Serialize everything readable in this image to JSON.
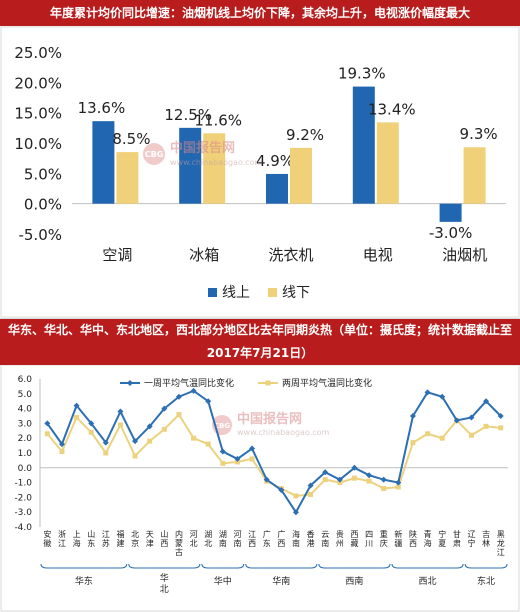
{
  "titles": {
    "top": "年度累计均价同比增速：油烟机线上均价下降，其余均上升，电视涨价幅度最大",
    "bottom_line1": "华东、华北、华中、东北地区，西北部分地区比去年同期炎热（单位：摄氏度；统计数据截止至",
    "bottom_line2": "2017年7月21日）"
  },
  "watermark": {
    "brand": "中国报告网",
    "url": "www.chinabaogao.com",
    "logo": "CBG"
  },
  "colors": {
    "title_bg": "#b81c1c",
    "online": "#2166b0",
    "offline": "#f0d17a",
    "weekly": "#2c6fb3",
    "biweekly": "#ecd27f"
  },
  "chart_data": [
    {
      "type": "bar",
      "categories": [
        "空调",
        "冰箱",
        "洗衣机",
        "电视",
        "油烟机"
      ],
      "series": [
        {
          "name": "线上",
          "values": [
            13.6,
            12.5,
            4.9,
            19.3,
            -3.0
          ],
          "labels": [
            "13.6%",
            "12.5%",
            "4.9%",
            "19.3%",
            "-3.0%"
          ]
        },
        {
          "name": "线下",
          "values": [
            8.5,
            11.6,
            9.2,
            13.4,
            9.3
          ],
          "labels": [
            "8.5%",
            "11.6%",
            "9.2%",
            "13.4%",
            "9.3%"
          ]
        }
      ],
      "yticks": [
        "25.0%",
        "20.0%",
        "15.0%",
        "10.0%",
        "5.0%",
        "0.0%",
        "-5.0%"
      ],
      "ylim": [
        -5,
        25
      ],
      "legend": "bottom"
    },
    {
      "type": "line",
      "categories": [
        "安徽",
        "浙江",
        "上海",
        "山东",
        "江苏",
        "福建",
        "北京",
        "天津",
        "山西",
        "内蒙古",
        "河北",
        "湖北",
        "湖南",
        "河南",
        "江西",
        "广东",
        "广西",
        "海南",
        "香港",
        "云南",
        "贵州",
        "西藏",
        "四川",
        "重庆",
        "新疆",
        "陕西",
        "青海",
        "宁夏",
        "甘肃",
        "辽宁",
        "吉林",
        "黑龙江"
      ],
      "series": [
        {
          "name": "一周平均气温同比变化",
          "values": [
            3.0,
            1.6,
            4.2,
            3.0,
            1.7,
            3.8,
            1.8,
            2.8,
            4.0,
            4.8,
            5.2,
            4.5,
            1.1,
            0.6,
            1.3,
            -0.8,
            -1.5,
            -3.0,
            -1.2,
            -0.3,
            -0.8,
            0.0,
            -0.5,
            -0.8,
            -1.0,
            3.5,
            5.1,
            4.8,
            3.2,
            3.4,
            4.5,
            3.5
          ]
        },
        {
          "name": "两周平均气温同比变化",
          "values": [
            2.3,
            1.1,
            3.4,
            2.4,
            1.0,
            2.9,
            0.8,
            1.8,
            2.6,
            3.6,
            2.0,
            1.6,
            0.3,
            0.4,
            0.6,
            -0.9,
            -1.4,
            -1.9,
            -1.8,
            -0.8,
            -1.0,
            -0.7,
            -0.9,
            -1.4,
            -1.3,
            1.7,
            2.3,
            2.0,
            3.2,
            2.2,
            2.8,
            2.7
          ]
        }
      ],
      "yticks": [
        "6.0",
        "5.0",
        "4.0",
        "3.0",
        "2.0",
        "1.0",
        "0.0",
        "-1.0",
        "-2.0",
        "-3.0",
        "-4.0"
      ],
      "ylim": [
        -4,
        6
      ],
      "regions": [
        {
          "name": "华东",
          "start": 0,
          "end": 5
        },
        {
          "name": "华北",
          "start": 6,
          "end": 10
        },
        {
          "name": "华中",
          "start": 11,
          "end": 13
        },
        {
          "name": "华南",
          "start": 14,
          "end": 18
        },
        {
          "name": "西南",
          "start": 19,
          "end": 23
        },
        {
          "name": "西北",
          "start": 24,
          "end": 28
        },
        {
          "name": "东北",
          "start": 29,
          "end": 31
        }
      ],
      "legend": "top"
    }
  ]
}
